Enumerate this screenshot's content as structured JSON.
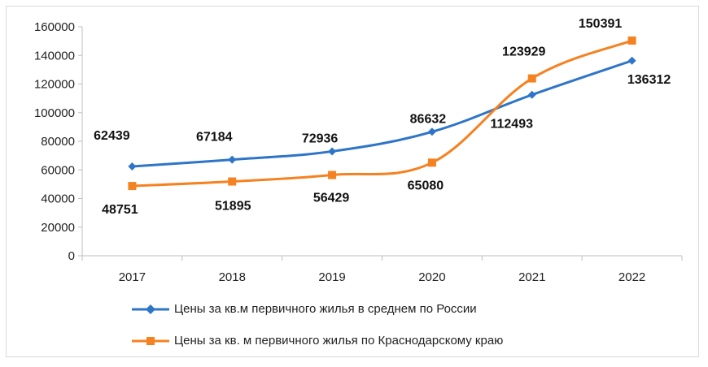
{
  "chart_data": {
    "type": "line",
    "categories": [
      "2017",
      "2018",
      "2019",
      "2020",
      "2021",
      "2022"
    ],
    "ylim": [
      0,
      160000
    ],
    "yticks": [
      "0",
      "20000",
      "40000",
      "60000",
      "80000",
      "100000",
      "120000",
      "140000",
      "160000"
    ],
    "grid": false,
    "legend_position": "bottom",
    "series": [
      {
        "name": "Цены за кв.м первичного жилья в среднем по России",
        "color": "#2e75c8",
        "marker": "diamond",
        "values": [
          62439,
          67184,
          72936,
          86632,
          112493,
          136312
        ],
        "labels": [
          "62439",
          "67184",
          "72936",
          "86632",
          "112493",
          "136312"
        ]
      },
      {
        "name": "Цены за кв. м первичного жилья по Краснодарскому краю",
        "color": "#f58220",
        "marker": "square",
        "values": [
          48751,
          51895,
          56429,
          65080,
          123929,
          150391
        ],
        "labels": [
          "48751",
          "51895",
          "56429",
          "65080",
          "123929",
          "150391"
        ]
      }
    ]
  }
}
